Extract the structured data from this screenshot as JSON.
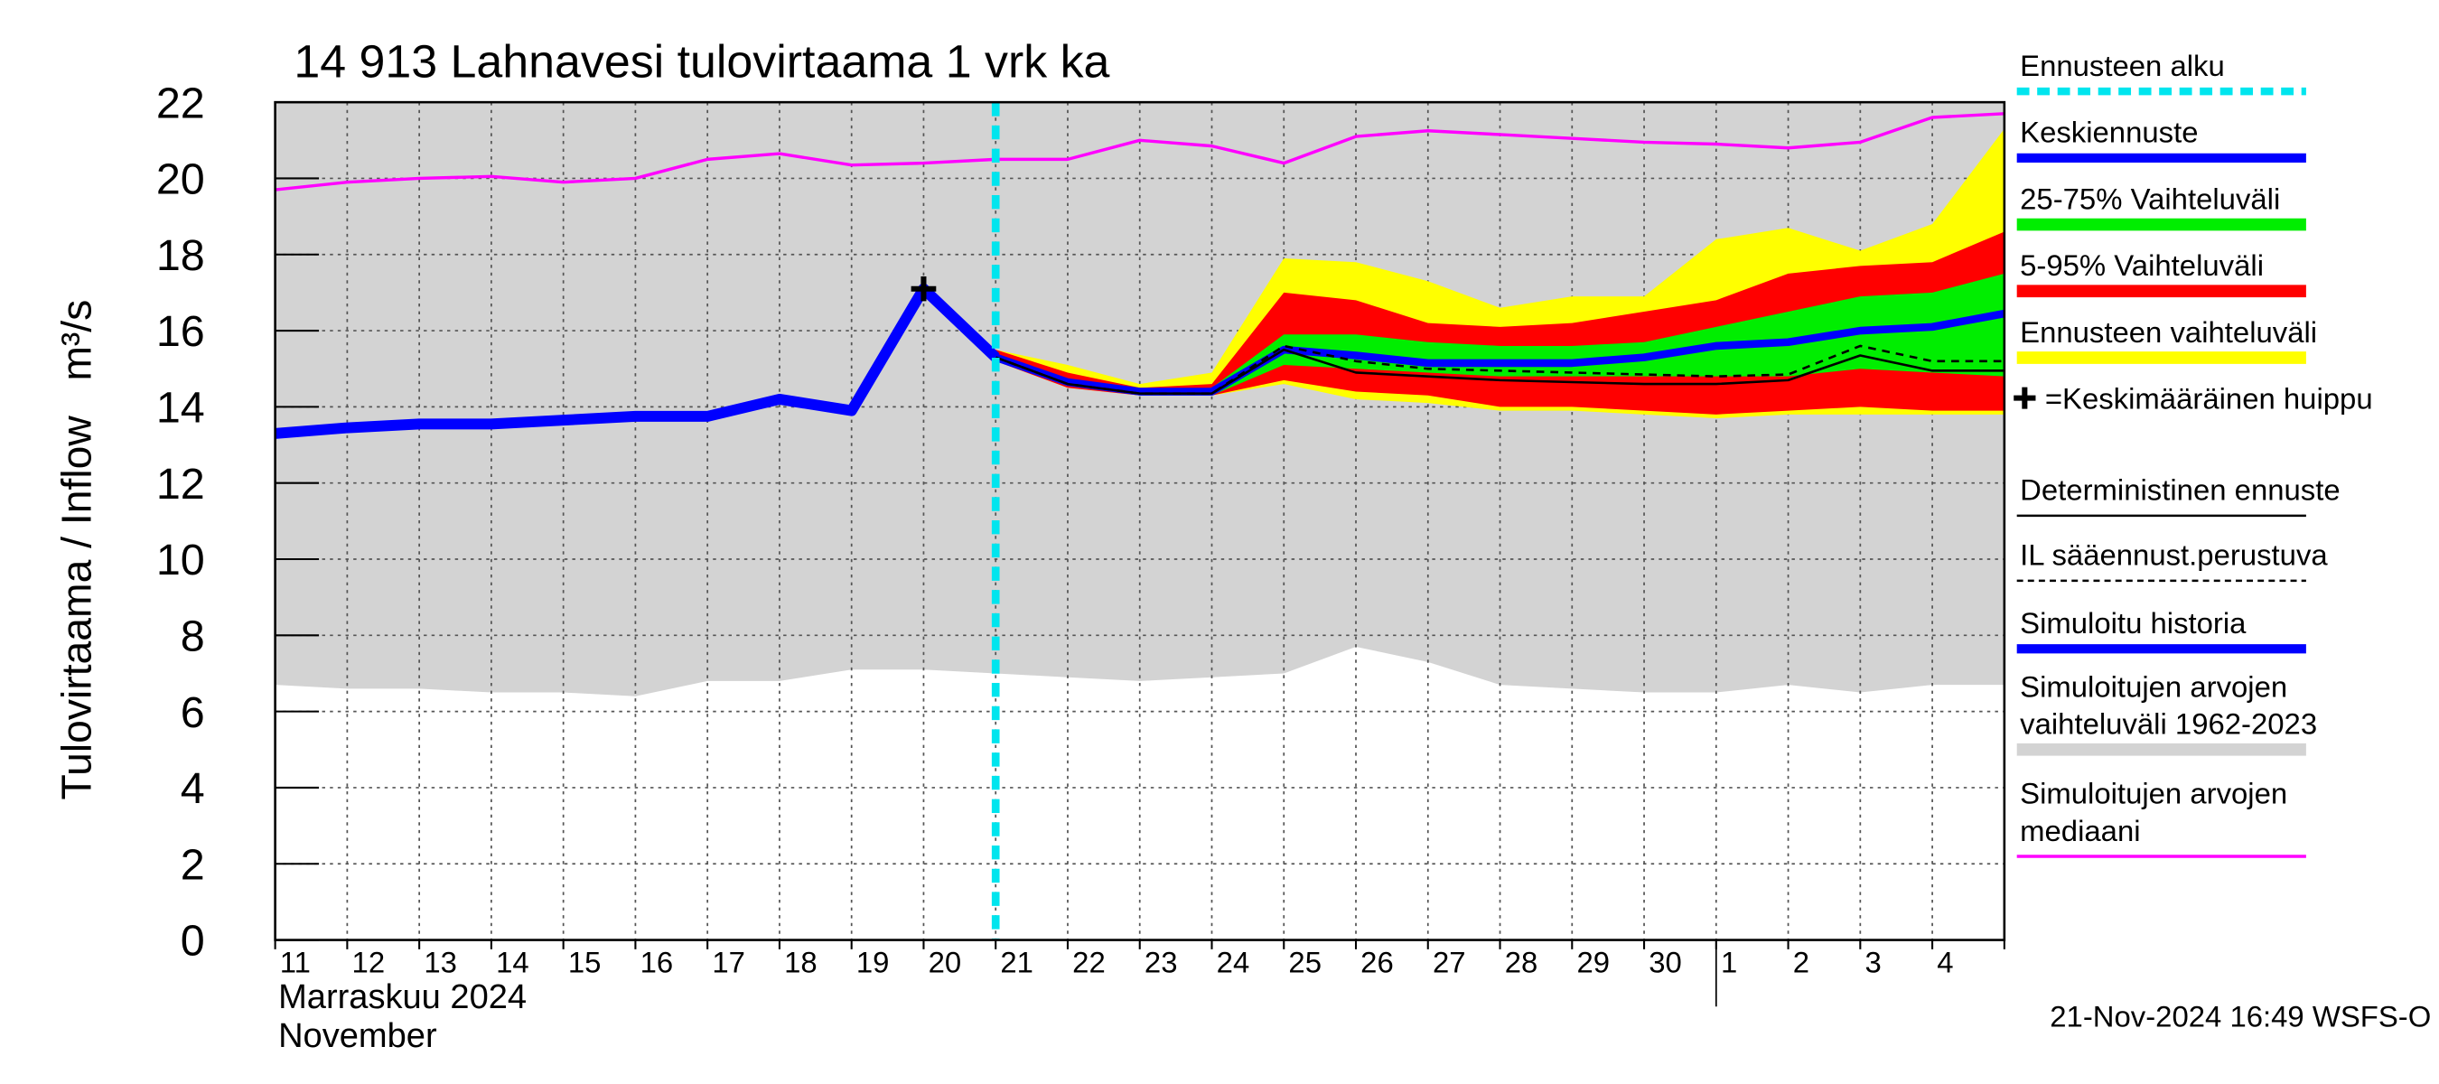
{
  "chart_data": {
    "type": "line",
    "title": "14 913 Lahnavesi tulovirtaama 1 vrk ka",
    "y_label": "Tulovirtaama / Inflow   m³/s",
    "x_label": [
      "Marraskuu 2024",
      "November"
    ],
    "timestamp": "21-Nov-2024 16:49 WSFS-O",
    "categories": [
      "11",
      "12",
      "13",
      "14",
      "15",
      "16",
      "17",
      "18",
      "19",
      "20",
      "21",
      "22",
      "23",
      "24",
      "25",
      "26",
      "27",
      "28",
      "29",
      "30",
      "1",
      "2",
      "3",
      "4",
      null
    ],
    "ylim": [
      0,
      22
    ],
    "yticks": [
      0,
      2,
      4,
      6,
      8,
      10,
      12,
      14,
      16,
      18,
      20,
      22
    ],
    "grid": true,
    "forecast_start": {
      "name": "Ennusteen alku",
      "color": "#00e5ee",
      "x": 10
    },
    "peak": {
      "name": "=Keskimääräinen huippu",
      "x": 9,
      "value": 17.1
    },
    "series": [
      {
        "name": "Keskiennuste",
        "kind": "line",
        "color": "#0000ff",
        "width": 5,
        "values": [
          null,
          null,
          null,
          null,
          null,
          null,
          null,
          null,
          null,
          null,
          15.3,
          14.65,
          14.4,
          14.4,
          15.5,
          15.35,
          15.15,
          15.15,
          15.15,
          15.3,
          15.6,
          15.7,
          16.0,
          16.1,
          16.45
        ]
      },
      {
        "name": "25-75% Vaihteluväli",
        "kind": "band",
        "color": "#00ee00",
        "low": [
          null,
          null,
          null,
          null,
          null,
          null,
          null,
          null,
          null,
          null,
          15.3,
          14.6,
          14.3,
          14.3,
          15.1,
          15.0,
          14.9,
          14.8,
          14.8,
          14.8,
          14.8,
          14.8,
          15.0,
          14.9,
          14.8
        ],
        "high": [
          null,
          null,
          null,
          null,
          null,
          null,
          null,
          null,
          null,
          null,
          15.3,
          14.7,
          14.4,
          14.5,
          15.9,
          15.9,
          15.7,
          15.6,
          15.6,
          15.7,
          16.1,
          16.5,
          16.9,
          17.0,
          17.5
        ]
      },
      {
        "name": "5-95% Vaihteluväli",
        "kind": "band",
        "color": "#ff0000",
        "low": [
          null,
          null,
          null,
          null,
          null,
          null,
          null,
          null,
          null,
          null,
          15.2,
          14.5,
          14.3,
          14.3,
          14.7,
          14.4,
          14.3,
          14.0,
          14.0,
          13.9,
          13.8,
          13.9,
          14.0,
          13.9,
          13.9
        ],
        "high": [
          null,
          null,
          null,
          null,
          null,
          null,
          null,
          null,
          null,
          null,
          15.5,
          14.9,
          14.5,
          14.6,
          17.0,
          16.8,
          16.2,
          16.1,
          16.2,
          16.5,
          16.8,
          17.5,
          17.7,
          17.8,
          18.6
        ]
      },
      {
        "name": "Ennusteen vaihteluväli",
        "kind": "band",
        "color": "#ffff00",
        "low": [
          null,
          null,
          null,
          null,
          null,
          null,
          null,
          null,
          null,
          null,
          15.2,
          14.5,
          14.3,
          14.3,
          14.6,
          14.2,
          14.1,
          13.9,
          13.9,
          13.8,
          13.7,
          13.8,
          13.8,
          13.8,
          13.8
        ],
        "high": [
          null,
          null,
          null,
          null,
          null,
          null,
          null,
          null,
          null,
          null,
          15.5,
          15.1,
          14.6,
          14.9,
          17.9,
          17.8,
          17.3,
          16.6,
          16.9,
          16.9,
          18.4,
          18.7,
          18.1,
          18.8,
          21.3
        ]
      },
      {
        "name": "Deterministinen ennuste",
        "kind": "line",
        "color": "#000000",
        "width": 1.5,
        "values": [
          null,
          null,
          null,
          null,
          null,
          null,
          null,
          null,
          null,
          null,
          15.3,
          14.6,
          14.35,
          14.35,
          15.5,
          14.9,
          14.8,
          14.7,
          14.65,
          14.6,
          14.6,
          14.7,
          15.35,
          14.95,
          14.95
        ]
      },
      {
        "name": "IL sääennust.perustuva",
        "kind": "line",
        "color": "#000000",
        "width": 1.5,
        "style": "dashed",
        "values": [
          null,
          null,
          null,
          null,
          null,
          null,
          null,
          null,
          null,
          null,
          15.3,
          14.6,
          14.35,
          14.35,
          15.6,
          15.2,
          15.0,
          14.95,
          14.9,
          14.85,
          14.8,
          14.85,
          15.6,
          15.2,
          15.2
        ]
      },
      {
        "name": "Simuloitu historia",
        "kind": "line",
        "color": "#0000ff",
        "width": 7,
        "values": [
          13.3,
          13.45,
          13.55,
          13.55,
          13.65,
          13.75,
          13.75,
          14.2,
          13.9,
          17.1,
          15.3,
          null,
          null,
          null,
          null,
          null,
          null,
          null,
          null,
          null,
          null,
          null,
          null,
          null,
          null
        ]
      },
      {
        "name": "Simuloitujen arvojen vaihteluväli 1962-2023",
        "kind": "band",
        "color": "#d3d3d3",
        "low": [
          6.7,
          6.6,
          6.6,
          6.5,
          6.5,
          6.4,
          6.8,
          6.8,
          7.1,
          7.1,
          7.0,
          6.9,
          6.8,
          6.9,
          7.0,
          7.7,
          7.3,
          6.7,
          6.6,
          6.5,
          6.5,
          6.7,
          6.5,
          6.7,
          6.7
        ],
        "high": [
          22,
          22,
          22,
          22,
          22,
          22,
          22,
          22,
          22,
          22,
          22,
          22,
          22,
          22,
          22,
          22,
          22,
          22,
          22,
          22,
          22,
          22,
          22,
          22,
          22
        ]
      },
      {
        "name": "Simuloitujen arvojen mediaani",
        "kind": "line",
        "color": "#ff00ff",
        "width": 2,
        "values": [
          19.7,
          19.9,
          20.0,
          20.05,
          19.9,
          20.0,
          20.5,
          20.65,
          20.35,
          20.4,
          20.5,
          20.5,
          21.0,
          20.85,
          20.4,
          21.1,
          21.25,
          21.15,
          21.05,
          20.95,
          20.9,
          20.8,
          20.95,
          21.6,
          21.7
        ]
      }
    ]
  }
}
